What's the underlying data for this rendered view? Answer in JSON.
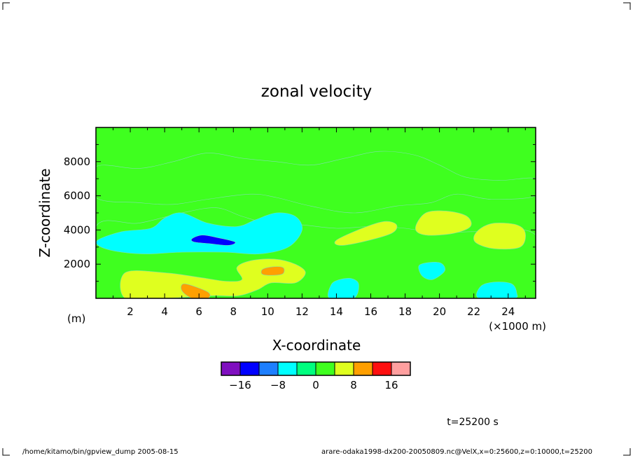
{
  "chart_data": {
    "type": "heatmap",
    "title": "zonal velocity",
    "xlabel": "X-coordinate",
    "ylabel": "Z-coordinate",
    "x_unit": "(×1000 m)",
    "y_unit": "(m)",
    "x_ticks": [
      "2",
      "4",
      "6",
      "8",
      "10",
      "12",
      "14",
      "16",
      "18",
      "20",
      "22",
      "24"
    ],
    "y_ticks": [
      "2000",
      "4000",
      "6000",
      "8000"
    ],
    "xlim": [
      0,
      25.6
    ],
    "ylim": [
      0,
      10000
    ],
    "colorbar": {
      "levels": [
        -20,
        -16,
        -12,
        -8,
        -4,
        0,
        4,
        8,
        12,
        16,
        20
      ],
      "colors": [
        "#7f0fbf",
        "#0000ff",
        "#1e7fff",
        "#00ffff",
        "#00ff7f",
        "#3fff1f",
        "#dfff1f",
        "#ff9f00",
        "#ff1010",
        "#ff9f9f"
      ],
      "tick_labels": [
        "−16",
        "−8",
        "0",
        "8",
        "16"
      ],
      "tick_values": [
        -16,
        -8,
        0,
        8,
        16
      ]
    },
    "regions": [
      {
        "value": 0.0,
        "points": [
          [
            0,
            4200
          ],
          [
            2.5,
            4400
          ],
          [
            5,
            5000
          ],
          [
            7,
            5300
          ],
          [
            8.5,
            4800
          ],
          [
            10,
            4400
          ],
          [
            12,
            4300
          ],
          [
            14,
            4100
          ],
          [
            16,
            4200
          ],
          [
            18,
            4100
          ],
          [
            20,
            3800
          ],
          [
            22,
            3900
          ],
          [
            25.6,
            3700
          ],
          [
            25.6,
            0
          ],
          [
            0,
            0
          ]
        ]
      },
      {
        "value": 0.0,
        "points": [
          [
            0,
            7700
          ],
          [
            2.5,
            7600
          ],
          [
            4.5,
            8000
          ],
          [
            6.5,
            8500
          ],
          [
            8.5,
            8200
          ],
          [
            10.5,
            8000
          ],
          [
            12.5,
            7800
          ],
          [
            14.5,
            8200
          ],
          [
            16.5,
            8600
          ],
          [
            18.5,
            8400
          ],
          [
            20,
            7800
          ],
          [
            21.5,
            7100
          ],
          [
            23.5,
            6900
          ],
          [
            25.6,
            7000
          ],
          [
            25.6,
            6000
          ],
          [
            23,
            5800
          ],
          [
            21,
            6100
          ],
          [
            19.5,
            5600
          ],
          [
            17.5,
            5400
          ],
          [
            15,
            5000
          ],
          [
            12.5,
            5400
          ],
          [
            10.5,
            5900
          ],
          [
            9,
            6100
          ],
          [
            6.5,
            5800
          ],
          [
            4.5,
            5500
          ],
          [
            2.5,
            5600
          ],
          [
            0,
            5900
          ]
        ]
      },
      {
        "value": 6.0,
        "points": [
          [
            1.7,
            1500
          ],
          [
            4,
            1500
          ],
          [
            6.2,
            1200
          ],
          [
            7.6,
            1000
          ],
          [
            8.5,
            1100
          ],
          [
            8.2,
            1800
          ],
          [
            9,
            2200
          ],
          [
            10.4,
            2300
          ],
          [
            11.6,
            2000
          ],
          [
            12.2,
            1500
          ],
          [
            11.6,
            900
          ],
          [
            10.2,
            900
          ],
          [
            9.4,
            500
          ],
          [
            8.3,
            150
          ],
          [
            6.8,
            150
          ],
          [
            4,
            0
          ],
          [
            1.7,
            0
          ]
        ]
      },
      {
        "value": 10.0,
        "points": [
          [
            5.1,
            850
          ],
          [
            6.0,
            600
          ],
          [
            6.6,
            300
          ],
          [
            6.5,
            0
          ],
          [
            5.6,
            0
          ],
          [
            5.0,
            450
          ]
        ]
      },
      {
        "value": 10.0,
        "points": [
          [
            9.7,
            1700
          ],
          [
            10.3,
            1850
          ],
          [
            10.9,
            1800
          ],
          [
            10.9,
            1450
          ],
          [
            10.4,
            1350
          ],
          [
            9.7,
            1400
          ]
        ]
      },
      {
        "value": 6.0,
        "points": [
          [
            14,
            3400
          ],
          [
            15.5,
            4100
          ],
          [
            16.8,
            4500
          ],
          [
            17.5,
            4300
          ],
          [
            17.2,
            3800
          ],
          [
            15.5,
            3300
          ],
          [
            14.2,
            3100
          ]
        ]
      },
      {
        "value": 6.0,
        "points": [
          [
            18.6,
            4100
          ],
          [
            19.2,
            5000
          ],
          [
            20.5,
            5100
          ],
          [
            21.6,
            4800
          ],
          [
            21.8,
            4200
          ],
          [
            20.8,
            3800
          ],
          [
            19.2,
            3700
          ]
        ]
      },
      {
        "value": 6.0,
        "points": [
          [
            22,
            3600
          ],
          [
            22.4,
            4100
          ],
          [
            23.2,
            4400
          ],
          [
            24.5,
            4300
          ],
          [
            25.0,
            3800
          ],
          [
            24.7,
            3000
          ],
          [
            23.2,
            2900
          ],
          [
            22.2,
            3200
          ]
        ]
      },
      {
        "value": -6.0,
        "points": [
          [
            0.1,
            3400
          ],
          [
            1.5,
            3900
          ],
          [
            3.2,
            4100
          ],
          [
            4,
            4700
          ],
          [
            5,
            5000
          ],
          [
            6.5,
            4400
          ],
          [
            8.2,
            4200
          ],
          [
            9.3,
            4600
          ],
          [
            10.5,
            5000
          ],
          [
            11.6,
            4800
          ],
          [
            12,
            4000
          ],
          [
            11.2,
            3000
          ],
          [
            9.5,
            2600
          ],
          [
            7.5,
            2700
          ],
          [
            5,
            2700
          ],
          [
            3,
            2600
          ],
          [
            1.5,
            2700
          ],
          [
            0.3,
            3000
          ]
        ]
      },
      {
        "value": -14.0,
        "points": [
          [
            5.6,
            3500
          ],
          [
            6.2,
            3700
          ],
          [
            7.1,
            3550
          ],
          [
            8.1,
            3300
          ],
          [
            7.7,
            3100
          ],
          [
            6.6,
            3200
          ],
          [
            5.7,
            3300
          ]
        ]
      },
      {
        "value": -6.0,
        "points": [
          [
            18.8,
            1900
          ],
          [
            19.4,
            2100
          ],
          [
            20.1,
            2050
          ],
          [
            20.3,
            1600
          ],
          [
            19.6,
            1100
          ],
          [
            19,
            1300
          ]
        ]
      },
      {
        "value": -6.0,
        "points": [
          [
            13.6,
            0
          ],
          [
            13.7,
            800
          ],
          [
            14.2,
            1100
          ],
          [
            14.9,
            1150
          ],
          [
            15.3,
            800
          ],
          [
            15.0,
            0
          ]
        ]
      },
      {
        "value": -6.0,
        "points": [
          [
            22.3,
            0
          ],
          [
            22.4,
            700
          ],
          [
            23.2,
            950
          ],
          [
            24.2,
            850
          ],
          [
            24.5,
            300
          ],
          [
            24.3,
            0
          ]
        ]
      }
    ]
  },
  "time_label": "t=25200 s",
  "footer": {
    "left": "/home/kitamo/bin/gpview_dump  2005-08-15",
    "right": "arare-odaka1998-dx200-20050809.nc@VelX,x=0:25600,z=0:10000,t=25200"
  },
  "background_color": "#3fff1f",
  "contour_line_color": "#7fdfaf"
}
